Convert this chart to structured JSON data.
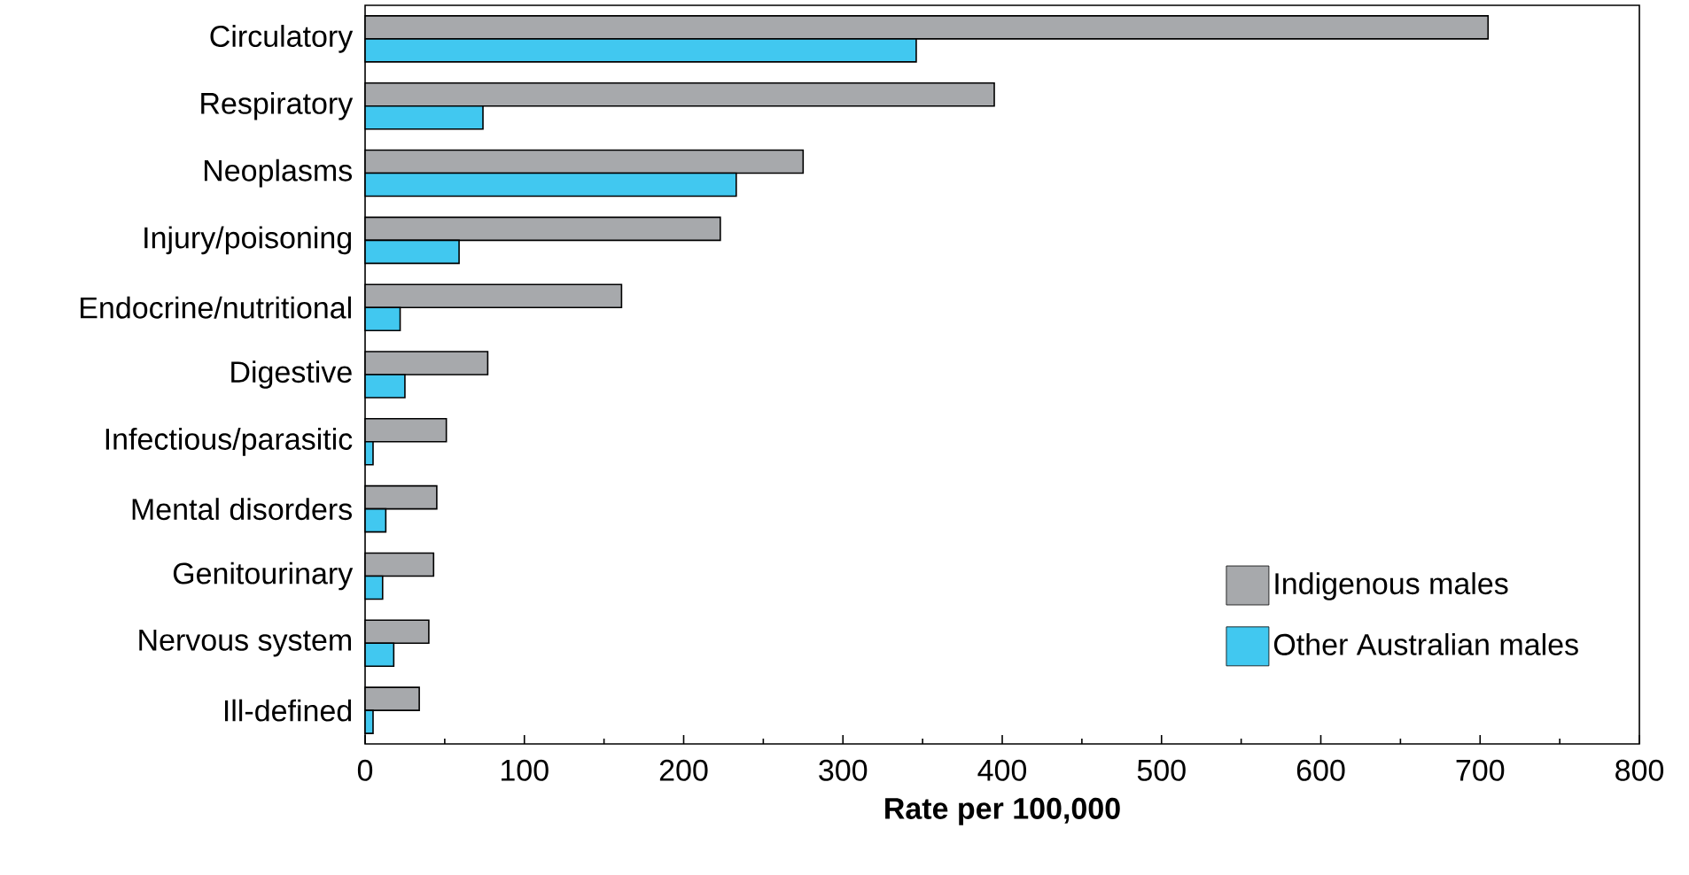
{
  "chart_data": {
    "type": "bar",
    "orientation": "horizontal",
    "xlabel": "Rate per 100,000",
    "categories": [
      "Circulatory",
      "Respiratory",
      "Neoplasms",
      "Injury/poisoning",
      "Endocrine/nutritional",
      "Digestive",
      "Infectious/parasitic",
      "Mental disorders",
      "Genitourinary",
      "Nervous system",
      "Ill-defined"
    ],
    "series": [
      {
        "name": "Indigenous males",
        "color": "#a7a9ac",
        "values": [
          705,
          395,
          275,
          223,
          161,
          77,
          51,
          45,
          43,
          40,
          34
        ]
      },
      {
        "name": "Other Australian males",
        "color": "#41c8f0",
        "values": [
          346,
          74,
          233,
          59,
          22,
          25,
          5,
          13,
          11,
          18,
          5
        ]
      }
    ],
    "xlim": [
      0,
      800
    ],
    "xticks": [
      0,
      100,
      200,
      300,
      400,
      500,
      600,
      700,
      800
    ],
    "legend": "bottom right",
    "grid": false
  }
}
